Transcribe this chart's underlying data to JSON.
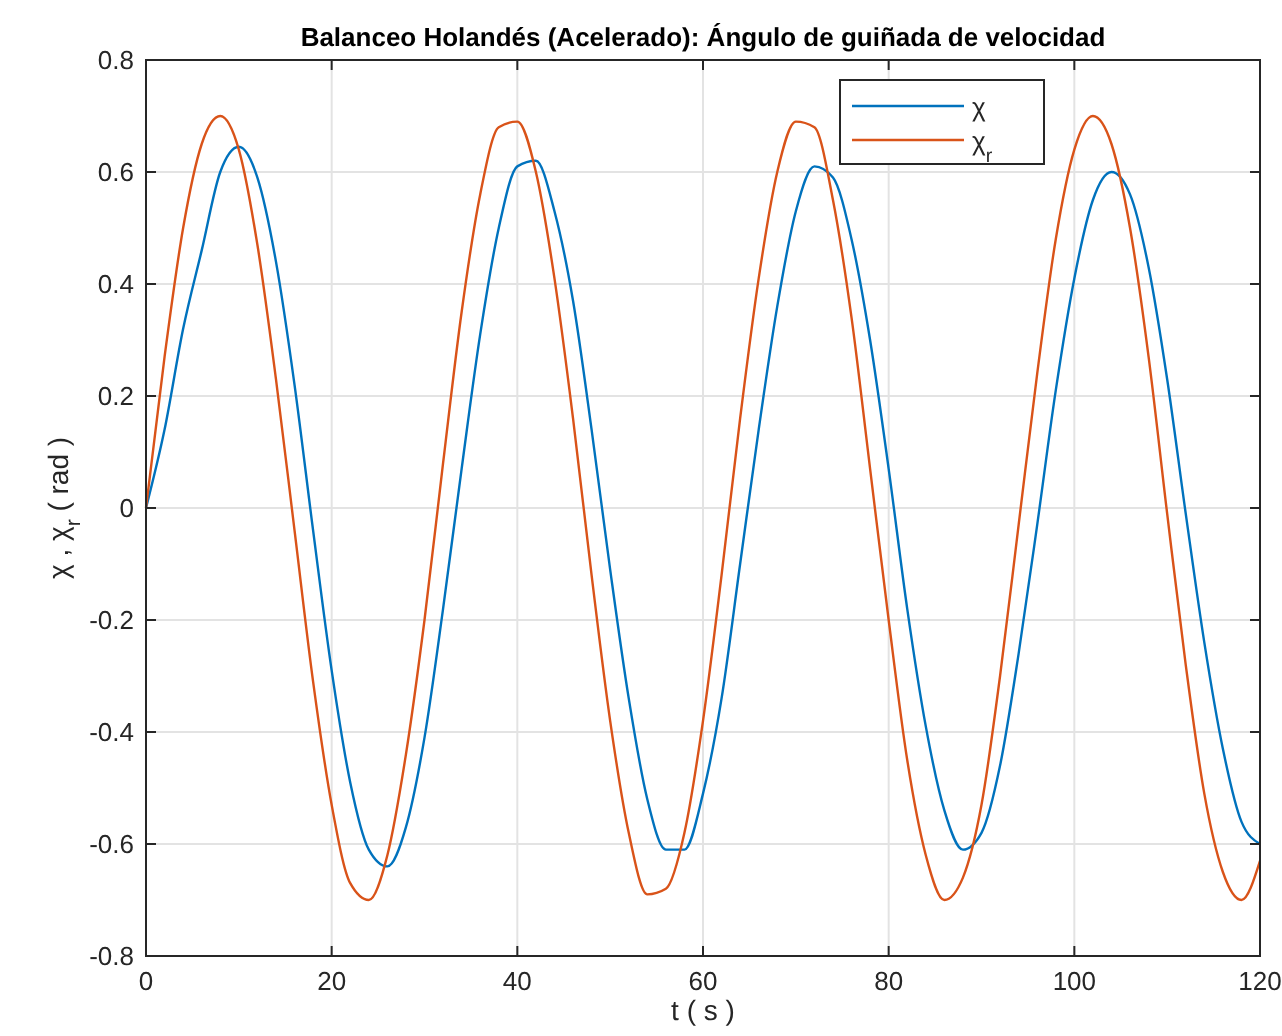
{
  "chart_data": {
    "type": "line",
    "title": "Balanceo Holandés (Acelerado): Ángulo de guiñada de velocidad",
    "xlabel": "t ( s )",
    "ylabel": "χ , χ$_{r}$ ( rad )",
    "x": [
      0,
      2,
      4,
      6,
      8,
      10,
      12,
      14,
      16,
      18,
      20,
      22,
      24,
      26,
      28,
      30,
      32,
      34,
      36,
      38,
      40,
      42,
      44,
      46,
      48,
      50,
      52,
      54,
      56,
      58,
      60,
      62,
      64,
      66,
      68,
      70,
      72,
      74,
      76,
      78,
      80,
      82,
      84,
      86,
      88,
      90,
      92,
      94,
      96,
      98,
      100,
      102,
      104,
      106,
      108,
      110,
      112,
      114,
      116,
      118,
      120
    ],
    "series": [
      {
        "name": "χ",
        "color": "#0072bd",
        "values": [
          0,
          0.14,
          0.32,
          0.46,
          0.6,
          0.645,
          0.59,
          0.44,
          0.22,
          -0.04,
          -0.29,
          -0.49,
          -0.61,
          -0.64,
          -0.57,
          -0.41,
          -0.18,
          0.07,
          0.31,
          0.5,
          0.61,
          0.62,
          0.53,
          0.37,
          0.14,
          -0.11,
          -0.34,
          -0.52,
          -0.61,
          -0.61,
          -0.51,
          -0.34,
          -0.1,
          0.14,
          0.36,
          0.53,
          0.61,
          0.59,
          0.48,
          0.3,
          0.07,
          -0.18,
          -0.39,
          -0.54,
          -0.61,
          -0.58,
          -0.46,
          -0.26,
          -0.03,
          0.21,
          0.41,
          0.55,
          0.6,
          0.56,
          0.43,
          0.23,
          -0.01,
          -0.24,
          -0.43,
          -0.56,
          -0.6
        ]
      },
      {
        "name": "χ$_{r}$",
        "color": "#d95319",
        "values": [
          0,
          0.27,
          0.5,
          0.65,
          0.7,
          0.64,
          0.47,
          0.23,
          -0.04,
          -0.31,
          -0.53,
          -0.67,
          -0.7,
          -0.62,
          -0.44,
          -0.2,
          0.08,
          0.35,
          0.56,
          0.68,
          0.69,
          0.6,
          0.41,
          0.16,
          -0.12,
          -0.38,
          -0.58,
          -0.69,
          -0.68,
          -0.58,
          -0.38,
          -0.12,
          0.16,
          0.41,
          0.6,
          0.69,
          0.68,
          0.55,
          0.34,
          0.07,
          -0.2,
          -0.45,
          -0.62,
          -0.7,
          -0.66,
          -0.53,
          -0.3,
          -0.03,
          0.24,
          0.48,
          0.64,
          0.7,
          0.65,
          0.5,
          0.27,
          -0.01,
          -0.28,
          -0.51,
          -0.65,
          -0.7,
          -0.63
        ]
      }
    ],
    "xlim": [
      0,
      120
    ],
    "xticks": [
      0,
      20,
      40,
      60,
      80,
      100,
      120
    ],
    "ylim": [
      -0.8,
      0.8
    ],
    "yticks": [
      -0.8,
      -0.6,
      -0.4,
      -0.2,
      0,
      0.2,
      0.4,
      0.6,
      0.8
    ],
    "grid": true,
    "legend": "top right",
    "marker": "none",
    "line_style": "solid"
  }
}
